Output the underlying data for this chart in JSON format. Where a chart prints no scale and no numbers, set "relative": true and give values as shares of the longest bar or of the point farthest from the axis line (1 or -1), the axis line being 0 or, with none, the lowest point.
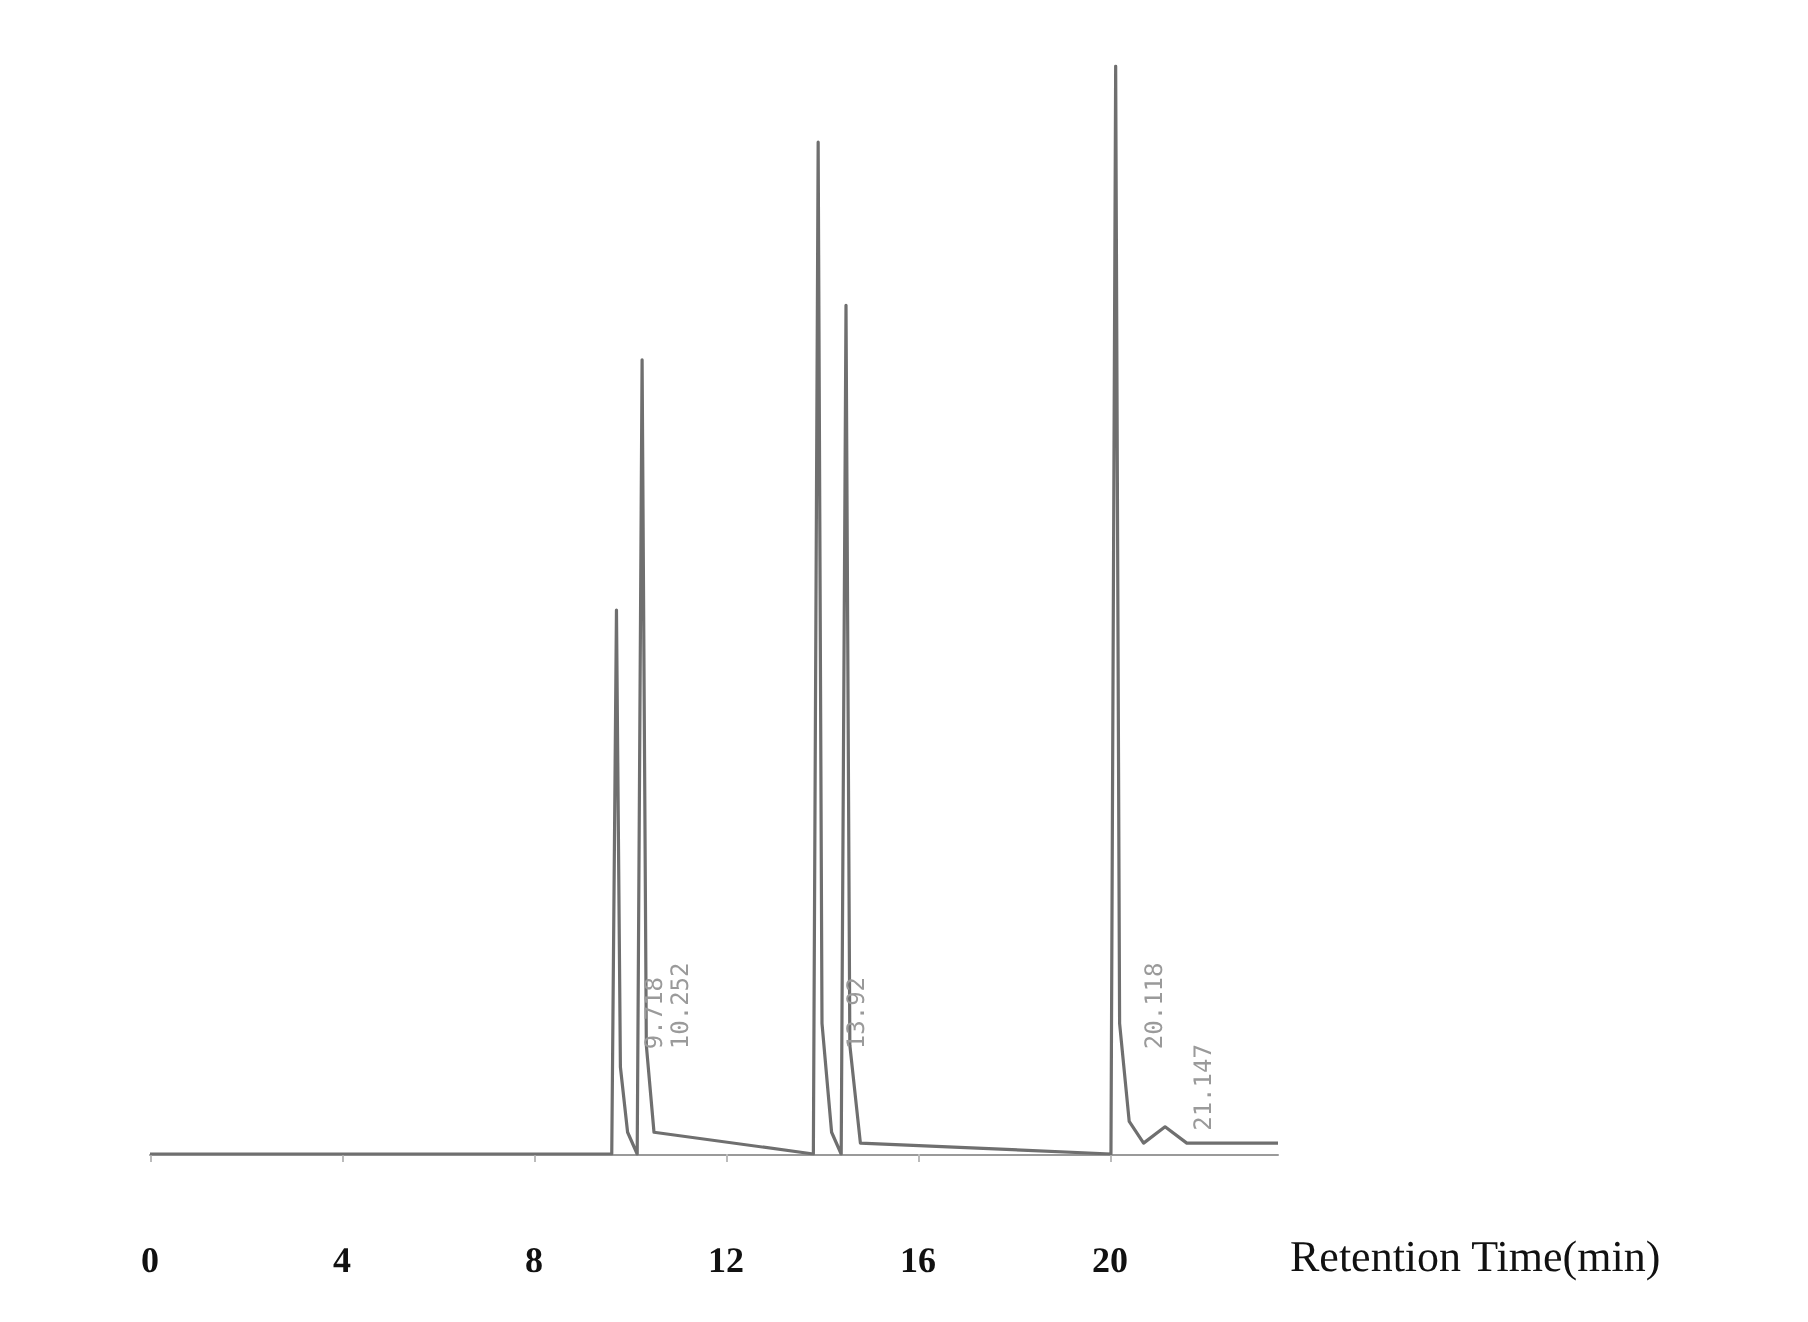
{
  "chart_data": {
    "type": "line",
    "relative": true,
    "xlabel": "Retention Time(min)",
    "color": "#6f6f6f",
    "xlim": [
      0,
      23.5
    ],
    "xticks": [
      0,
      4,
      8,
      12,
      16,
      20
    ],
    "grid": false,
    "marker": "none",
    "line_style": "solid",
    "x": [
      0,
      9.62,
      9.718,
      9.8,
      9.95,
      10.15,
      10.252,
      10.34,
      10.5,
      13.82,
      13.92,
      14.0,
      14.2,
      14.4,
      14.5,
      14.58,
      14.8,
      20.02,
      20.118,
      20.2,
      20.4,
      20.7,
      21.147,
      21.6,
      23.5
    ],
    "values": [
      0,
      0,
      0.5,
      0.08,
      0.02,
      0,
      0.73,
      0.1,
      0.02,
      0,
      0.93,
      0.12,
      0.02,
      0,
      0.78,
      0.1,
      0.01,
      0,
      1,
      0.12,
      0.03,
      0.01,
      0.025,
      0.01,
      0.01
    ],
    "annotations": [
      {
        "text": "9.718",
        "x": 9.718,
        "y": 0.1
      },
      {
        "text": "10.252",
        "x": 10.252,
        "y": 0.1
      },
      {
        "text": "13.92",
        "x": 13.92,
        "y": 0.1
      },
      {
        "text": "20.118",
        "x": 20.118,
        "y": 0.1
      },
      {
        "text": "21.147",
        "x": 21.147,
        "y": 0.025
      }
    ]
  }
}
